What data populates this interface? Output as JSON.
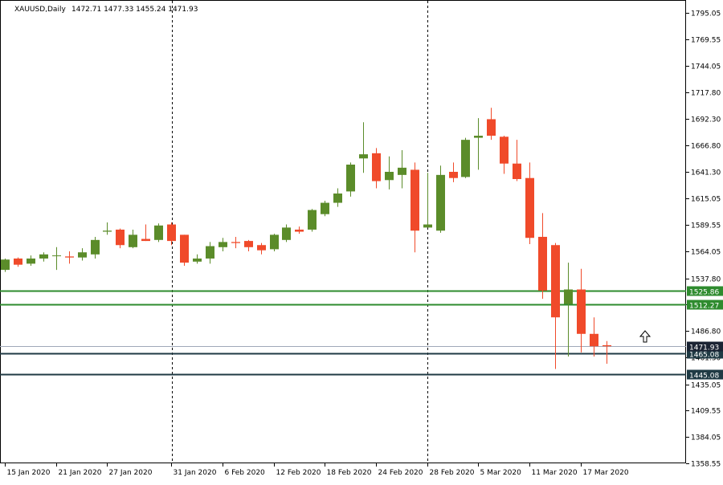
{
  "symbol_header": "XAUUSD,Daily",
  "ohlc_header": "1472.71 1477.33 1455.24 1471.93",
  "colors": {
    "bull": "#5b8c2a",
    "bear": "#f04a2a",
    "support_resistance": "#2e8b2e",
    "dark_level": "#1f3a44",
    "bid": "#a0a8b8",
    "background": "#ffffff"
  },
  "chart_data": {
    "type": "candlestick",
    "symbol": "XAUUSD",
    "timeframe": "Daily",
    "ylim": [
      1357.0,
      1806.0
    ],
    "y_ticks": [
      "1795.05",
      "1769.55",
      "1744.05",
      "1717.80",
      "1692.30",
      "1666.80",
      "1641.30",
      "1615.05",
      "1589.55",
      "1564.05",
      "1537.80",
      "1512.30",
      "1486.80",
      "1461.30",
      "1435.05",
      "1409.55",
      "1384.05",
      "1358.55"
    ],
    "x_labels": [
      "15 Jan 2020",
      "21 Jan 2020",
      "27 Jan 2020",
      "31 Jan 2020",
      "6 Feb 2020",
      "12 Feb 2020",
      "18 Feb 2020",
      "24 Feb 2020",
      "28 Feb 2020",
      "5 Mar 2020",
      "11 Mar 2020",
      "17 Mar 2020"
    ],
    "candles": [
      {
        "o": 1546,
        "h": 1557,
        "l": 1544,
        "c": 1556
      },
      {
        "o": 1557,
        "h": 1558,
        "l": 1549,
        "c": 1551
      },
      {
        "o": 1552,
        "h": 1560,
        "l": 1550,
        "c": 1557
      },
      {
        "o": 1557,
        "h": 1563,
        "l": 1554,
        "c": 1561
      },
      {
        "o": 1560,
        "h": 1568,
        "l": 1546,
        "c": 1560
      },
      {
        "o": 1559,
        "h": 1564,
        "l": 1552,
        "c": 1558
      },
      {
        "o": 1558,
        "h": 1567,
        "l": 1555,
        "c": 1563
      },
      {
        "o": 1561,
        "h": 1578,
        "l": 1557,
        "c": 1575
      },
      {
        "o": 1583,
        "h": 1592,
        "l": 1580,
        "c": 1584
      },
      {
        "o": 1585,
        "h": 1586,
        "l": 1567,
        "c": 1570
      },
      {
        "o": 1568,
        "h": 1585,
        "l": 1567,
        "c": 1580
      },
      {
        "o": 1576,
        "h": 1590,
        "l": 1574,
        "c": 1574
      },
      {
        "o": 1575,
        "h": 1591,
        "l": 1573,
        "c": 1589
      },
      {
        "o": 1590,
        "h": 1592,
        "l": 1570,
        "c": 1574
      },
      {
        "o": 1580,
        "h": 1580,
        "l": 1550,
        "c": 1553
      },
      {
        "o": 1554,
        "h": 1561,
        "l": 1552,
        "c": 1557
      },
      {
        "o": 1557,
        "h": 1573,
        "l": 1552,
        "c": 1569
      },
      {
        "o": 1568,
        "h": 1577,
        "l": 1564,
        "c": 1573
      },
      {
        "o": 1573,
        "h": 1578,
        "l": 1567,
        "c": 1572
      },
      {
        "o": 1574,
        "h": 1575,
        "l": 1564,
        "c": 1568
      },
      {
        "o": 1570,
        "h": 1572,
        "l": 1561,
        "c": 1565
      },
      {
        "o": 1566,
        "h": 1581,
        "l": 1564,
        "c": 1580
      },
      {
        "o": 1575,
        "h": 1590,
        "l": 1573,
        "c": 1587
      },
      {
        "o": 1585,
        "h": 1588,
        "l": 1581,
        "c": 1583
      },
      {
        "o": 1585,
        "h": 1605,
        "l": 1583,
        "c": 1604
      },
      {
        "o": 1600,
        "h": 1613,
        "l": 1598,
        "c": 1611
      },
      {
        "o": 1611,
        "h": 1625,
        "l": 1607,
        "c": 1620
      },
      {
        "o": 1622,
        "h": 1650,
        "l": 1617,
        "c": 1648
      },
      {
        "o": 1654,
        "h": 1689,
        "l": 1640,
        "c": 1658
      },
      {
        "o": 1659,
        "h": 1664,
        "l": 1625,
        "c": 1632
      },
      {
        "o": 1633,
        "h": 1656,
        "l": 1624,
        "c": 1641
      },
      {
        "o": 1638,
        "h": 1662,
        "l": 1625,
        "c": 1645
      },
      {
        "o": 1643,
        "h": 1650,
        "l": 1563,
        "c": 1584
      },
      {
        "o": 1587,
        "h": 1640,
        "l": 1587,
        "c": 1590
      },
      {
        "o": 1584,
        "h": 1647,
        "l": 1582,
        "c": 1638
      },
      {
        "o": 1641,
        "h": 1650,
        "l": 1631,
        "c": 1635
      },
      {
        "o": 1636,
        "h": 1674,
        "l": 1635,
        "c": 1672
      },
      {
        "o": 1674,
        "h": 1693,
        "l": 1643,
        "c": 1676
      },
      {
        "o": 1692,
        "h": 1703,
        "l": 1672,
        "c": 1676
      },
      {
        "o": 1675,
        "h": 1676,
        "l": 1639,
        "c": 1649
      },
      {
        "o": 1649,
        "h": 1672,
        "l": 1632,
        "c": 1634
      },
      {
        "o": 1635,
        "h": 1650,
        "l": 1571,
        "c": 1577
      },
      {
        "o": 1578,
        "h": 1601,
        "l": 1518,
        "c": 1526
      },
      {
        "o": 1570,
        "h": 1572,
        "l": 1450,
        "c": 1500
      },
      {
        "o": 1513,
        "h": 1553,
        "l": 1462,
        "c": 1527
      },
      {
        "o": 1527,
        "h": 1547,
        "l": 1466,
        "c": 1484
      },
      {
        "o": 1484,
        "h": 1500,
        "l": 1462,
        "c": 1472
      },
      {
        "o": 1473,
        "h": 1477,
        "l": 1455,
        "c": 1472
      }
    ],
    "horizontal_levels": [
      {
        "value": 1525.86,
        "label": "1525.86",
        "kind": "green"
      },
      {
        "value": 1512.27,
        "label": "1512.27",
        "kind": "green"
      },
      {
        "value": 1465.08,
        "label": "1465.08",
        "kind": "dark"
      },
      {
        "value": 1445.08,
        "label": "1445.08",
        "kind": "dark"
      }
    ],
    "bid": {
      "value": 1471.93,
      "label": "1471.93"
    },
    "period_separators": [
      "31 Jan 2020",
      "28 Feb 2020"
    ],
    "arrow_annotation": "up-arrow"
  }
}
